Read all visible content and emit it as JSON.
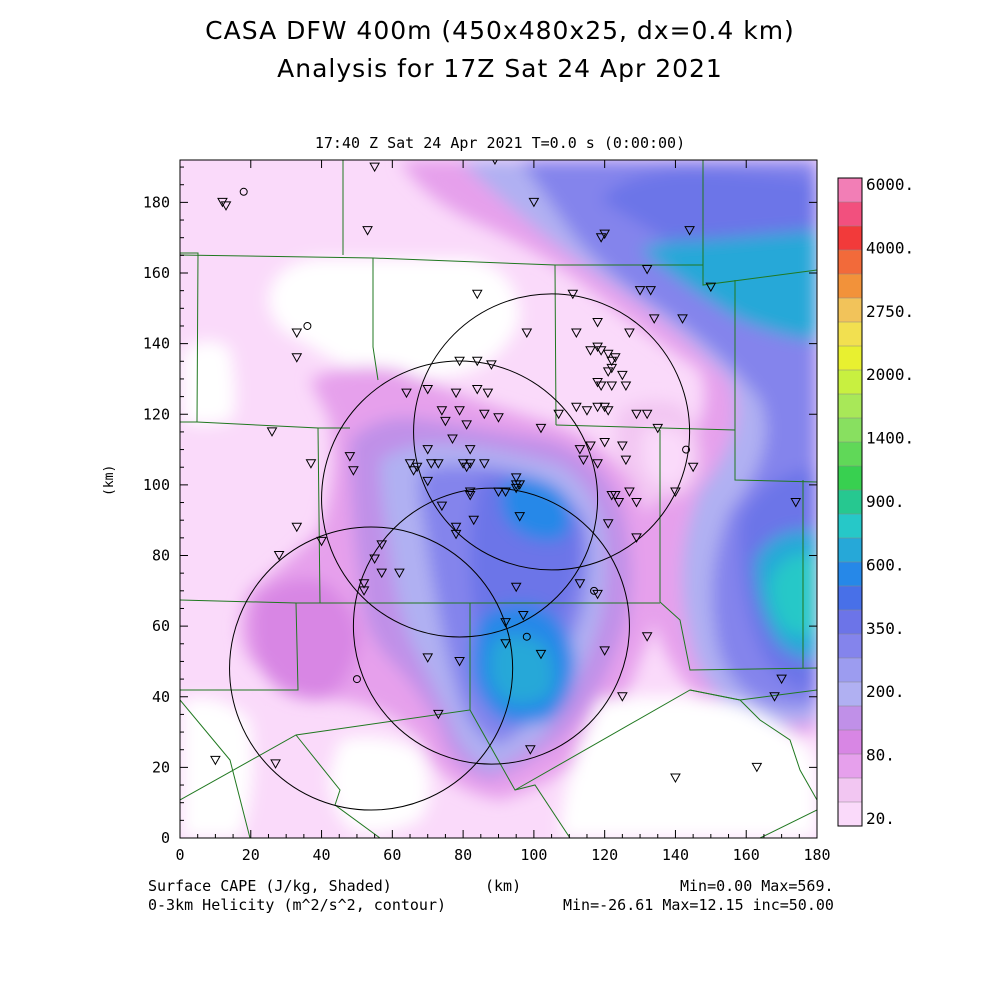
{
  "title_line1": "CASA DFW 400m (450x480x25, dx=0.4 km)",
  "title_line2": "Analysis for 17Z Sat 24 Apr 2021",
  "subtitle": "17:40 Z Sat 24 Apr 2021   T=0.0 s (0:00:00)",
  "axes": {
    "x_label": "(km)",
    "y_label": "(km)",
    "x_ticks": [
      "0",
      "20",
      "40",
      "60",
      "80",
      "100",
      "120",
      "140",
      "160",
      "180"
    ],
    "y_ticks": [
      "0",
      "20",
      "40",
      "60",
      "80",
      "100",
      "120",
      "140",
      "160",
      "180"
    ],
    "x_range": [
      0,
      180
    ],
    "y_range": [
      0,
      192
    ]
  },
  "colorbar": {
    "labels": [
      "6000.",
      "4000.",
      "2750.",
      "2000.",
      "1400.",
      "900.",
      "600.",
      "350.",
      "200.",
      "80.",
      "20."
    ],
    "colors": [
      "#f27eb6",
      "#f2507e",
      "#f23a3a",
      "#f26a3a",
      "#f2923a",
      "#f2c35a",
      "#f2e050",
      "#e8f030",
      "#c8f040",
      "#a8e858",
      "#88e060",
      "#60d858",
      "#38d050",
      "#26c890",
      "#26c8c8",
      "#26a8d8",
      "#2688e8",
      "#4870e8",
      "#6c74e8",
      "#8484ec",
      "#9c9cf0",
      "#b0b0f2",
      "#c090e8",
      "#d886e4",
      "#e6a0ec",
      "#f2c6f2",
      "#fadafa"
    ]
  },
  "footer": {
    "left1": "Surface CAPE (J/kg, Shaded)",
    "center": "(km)",
    "right1": "Min=0.00 Max=569.",
    "left2": "0-3km Helicity (m^2/s^2, contour)",
    "right2": "Min=-26.61 Max=12.15 inc=50.00"
  },
  "radars": [
    {
      "x": 105,
      "y": 115,
      "r": 39
    },
    {
      "x": 79,
      "y": 96,
      "r": 39
    },
    {
      "x": 88,
      "y": 60,
      "r": 39
    },
    {
      "x": 54,
      "y": 48,
      "r": 40
    }
  ],
  "stations": [
    [
      89,
      192
    ],
    [
      55,
      190
    ],
    [
      12,
      180
    ],
    [
      13,
      179
    ],
    [
      100,
      180
    ],
    [
      53,
      172
    ],
    [
      120,
      171
    ],
    [
      119,
      170
    ],
    [
      144,
      172
    ],
    [
      132,
      161
    ],
    [
      150,
      156
    ],
    [
      130,
      155
    ],
    [
      133,
      155
    ],
    [
      84,
      154
    ],
    [
      111,
      154
    ],
    [
      142,
      147
    ],
    [
      134,
      147
    ],
    [
      118,
      146
    ],
    [
      33,
      143
    ],
    [
      98,
      143
    ],
    [
      112,
      143
    ],
    [
      127,
      143
    ],
    [
      118,
      139
    ],
    [
      119,
      138
    ],
    [
      121,
      137
    ],
    [
      116,
      138
    ],
    [
      123,
      136
    ],
    [
      122,
      135
    ],
    [
      79,
      135
    ],
    [
      84,
      135
    ],
    [
      88,
      134
    ],
    [
      33,
      136
    ],
    [
      122,
      133
    ],
    [
      121,
      132
    ],
    [
      125,
      131
    ],
    [
      118,
      129
    ],
    [
      119,
      128
    ],
    [
      126,
      128
    ],
    [
      64,
      126
    ],
    [
      70,
      127
    ],
    [
      78,
      126
    ],
    [
      84,
      127
    ],
    [
      87,
      126
    ],
    [
      122,
      128
    ],
    [
      74,
      121
    ],
    [
      79,
      121
    ],
    [
      86,
      120
    ],
    [
      90,
      119
    ],
    [
      107,
      120
    ],
    [
      112,
      122
    ],
    [
      115,
      121
    ],
    [
      120,
      122
    ],
    [
      121,
      121
    ],
    [
      118,
      122
    ],
    [
      129,
      120
    ],
    [
      132,
      120
    ],
    [
      75,
      118
    ],
    [
      81,
      117
    ],
    [
      135,
      116
    ],
    [
      102,
      116
    ],
    [
      26,
      115
    ],
    [
      120,
      112
    ],
    [
      113,
      110
    ],
    [
      116,
      111
    ],
    [
      70,
      110
    ],
    [
      77,
      113
    ],
    [
      82,
      110
    ],
    [
      65,
      106
    ],
    [
      71,
      106
    ],
    [
      73,
      106
    ],
    [
      80,
      106
    ],
    [
      81,
      105
    ],
    [
      82,
      106
    ],
    [
      86,
      106
    ],
    [
      66,
      104
    ],
    [
      67,
      105
    ],
    [
      114,
      107
    ],
    [
      118,
      106
    ],
    [
      126,
      107
    ],
    [
      125,
      111
    ],
    [
      37,
      106
    ],
    [
      48,
      108
    ],
    [
      49,
      104
    ],
    [
      95,
      102
    ],
    [
      95,
      100
    ],
    [
      95,
      99
    ],
    [
      96,
      100
    ],
    [
      70,
      101
    ],
    [
      82,
      98
    ],
    [
      82,
      97
    ],
    [
      90,
      98
    ],
    [
      92,
      98
    ],
    [
      127,
      98
    ],
    [
      123,
      97
    ],
    [
      140,
      98
    ],
    [
      129,
      95
    ],
    [
      122,
      97
    ],
    [
      124,
      95
    ],
    [
      74,
      94
    ],
    [
      83,
      90
    ],
    [
      96,
      91
    ],
    [
      121,
      89
    ],
    [
      78,
      88
    ],
    [
      78,
      86
    ],
    [
      129,
      85
    ],
    [
      33,
      88
    ],
    [
      40,
      84
    ],
    [
      57,
      83
    ],
    [
      28,
      80
    ],
    [
      55,
      79
    ],
    [
      57,
      75
    ],
    [
      62,
      75
    ],
    [
      113,
      72
    ],
    [
      95,
      71
    ],
    [
      52,
      72
    ],
    [
      52,
      70
    ],
    [
      118,
      69
    ],
    [
      97,
      63
    ],
    [
      92,
      61
    ],
    [
      92,
      55
    ],
    [
      102,
      52
    ],
    [
      132,
      57
    ],
    [
      120,
      53
    ],
    [
      70,
      51
    ],
    [
      79,
      50
    ],
    [
      73,
      35
    ],
    [
      125,
      40
    ],
    [
      168,
      40
    ],
    [
      170,
      45
    ],
    [
      174,
      95
    ],
    [
      145,
      105
    ],
    [
      99,
      25
    ],
    [
      140,
      17
    ],
    [
      163,
      20
    ],
    [
      10,
      22
    ],
    [
      27,
      21
    ]
  ],
  "towns": [
    [
      18,
      183
    ],
    [
      36,
      145
    ],
    [
      50,
      45
    ],
    [
      143,
      110
    ],
    [
      117,
      70
    ],
    [
      98,
      57
    ]
  ]
}
